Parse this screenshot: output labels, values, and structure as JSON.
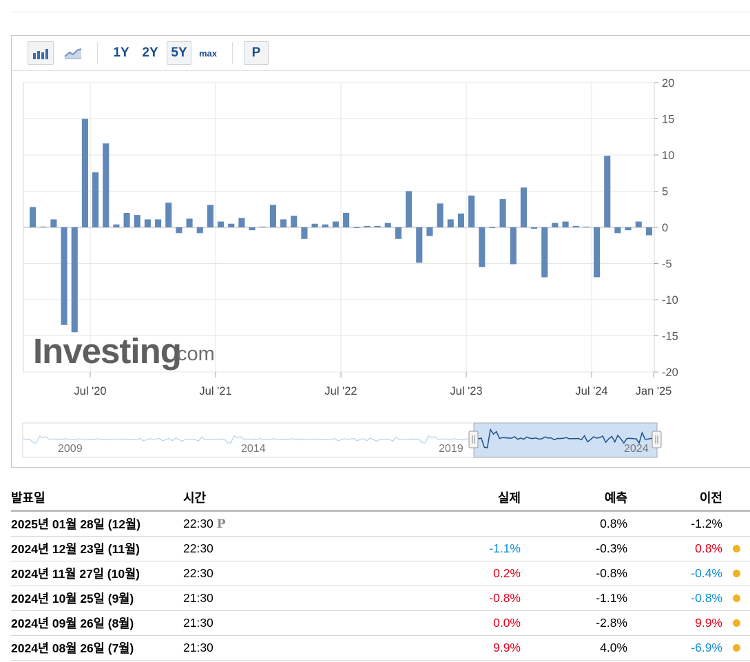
{
  "toolbar": {
    "bar_icon": "bar-chart-icon",
    "line_icon": "line-chart-icon",
    "ranges": [
      "1Y",
      "2Y",
      "5Y",
      "max"
    ],
    "active_range": "5Y",
    "p_button": "P"
  },
  "watermark": {
    "brand": "Investing",
    "suffix": ".com"
  },
  "navigator": {
    "labels": [
      "2009",
      "2014",
      "2019",
      "2024"
    ]
  },
  "colors": {
    "bar": "#6088b8",
    "grid": "#e6e6e6",
    "negative": "#0f8fd8",
    "positive": "#e0001b",
    "accent": "#1c4e8c",
    "dot": "#f0b323"
  },
  "chart_data": {
    "type": "bar",
    "x_tick_labels": [
      "Jul '20",
      "Jul '21",
      "Jul '22",
      "Jul '23",
      "Jul '24",
      "Jan '25"
    ],
    "y_tick_labels": [
      "20",
      "15",
      "10",
      "5",
      "0",
      "-5",
      "-10",
      "-15",
      "-20"
    ],
    "ylim": [
      -20,
      20
    ],
    "grid": true,
    "y_axis_side": "right",
    "x_start": "2020-01",
    "values": [
      2.8,
      0.1,
      1.1,
      -13.5,
      -14.5,
      15.0,
      7.6,
      11.6,
      0.4,
      2.0,
      1.7,
      1.1,
      1.1,
      3.4,
      -0.8,
      1.2,
      -0.8,
      3.1,
      0.8,
      0.5,
      1.3,
      -0.4,
      0.1,
      3.1,
      1.1,
      1.6,
      -1.6,
      0.5,
      0.4,
      0.8,
      2.0,
      0.0,
      0.2,
      0.2,
      0.6,
      -1.6,
      5.0,
      -4.9,
      -1.2,
      3.3,
      1.1,
      1.9,
      4.4,
      -5.5,
      0.0,
      3.9,
      -5.1,
      5.5,
      -0.2,
      -6.9,
      0.6,
      0.8,
      0.2,
      0.1,
      -6.9,
      9.9,
      -0.8,
      -0.4,
      0.8,
      -1.1
    ]
  },
  "table": {
    "headers": {
      "date": "발표일",
      "time": "시간",
      "actual": "실제",
      "forecast": "예측",
      "previous": "이전"
    },
    "rows": [
      {
        "date": "2025년 01월 28일 (12월)",
        "time": "22:30",
        "actual": "",
        "actual_sign": "",
        "forecast": "0.8%",
        "previous": "-1.2%",
        "previous_sign": "",
        "pending": true
      },
      {
        "date": "2024년 12월 23일 (11월)",
        "time": "22:30",
        "actual": "-1.1%",
        "actual_sign": "neg",
        "forecast": "-0.3%",
        "previous": "0.8%",
        "previous_sign": "pos",
        "pending": false
      },
      {
        "date": "2024년 11월 27일 (10월)",
        "time": "22:30",
        "actual": "0.2%",
        "actual_sign": "pos",
        "forecast": "-0.8%",
        "previous": "-0.4%",
        "previous_sign": "neg",
        "pending": false
      },
      {
        "date": "2024년 10월 25일 (9월)",
        "time": "21:30",
        "actual": "-0.8%",
        "actual_sign": "pos",
        "forecast": "-1.1%",
        "previous": "-0.8%",
        "previous_sign": "neg",
        "pending": false
      },
      {
        "date": "2024년 09월 26일 (8월)",
        "time": "21:30",
        "actual": "0.0%",
        "actual_sign": "pos",
        "forecast": "-2.8%",
        "previous": "9.9%",
        "previous_sign": "pos",
        "pending": false
      },
      {
        "date": "2024년 08월 26일 (7월)",
        "time": "21:30",
        "actual": "9.9%",
        "actual_sign": "pos",
        "forecast": "4.0%",
        "previous": "-6.9%",
        "previous_sign": "neg",
        "pending": false
      }
    ],
    "pending_mark": "P"
  }
}
